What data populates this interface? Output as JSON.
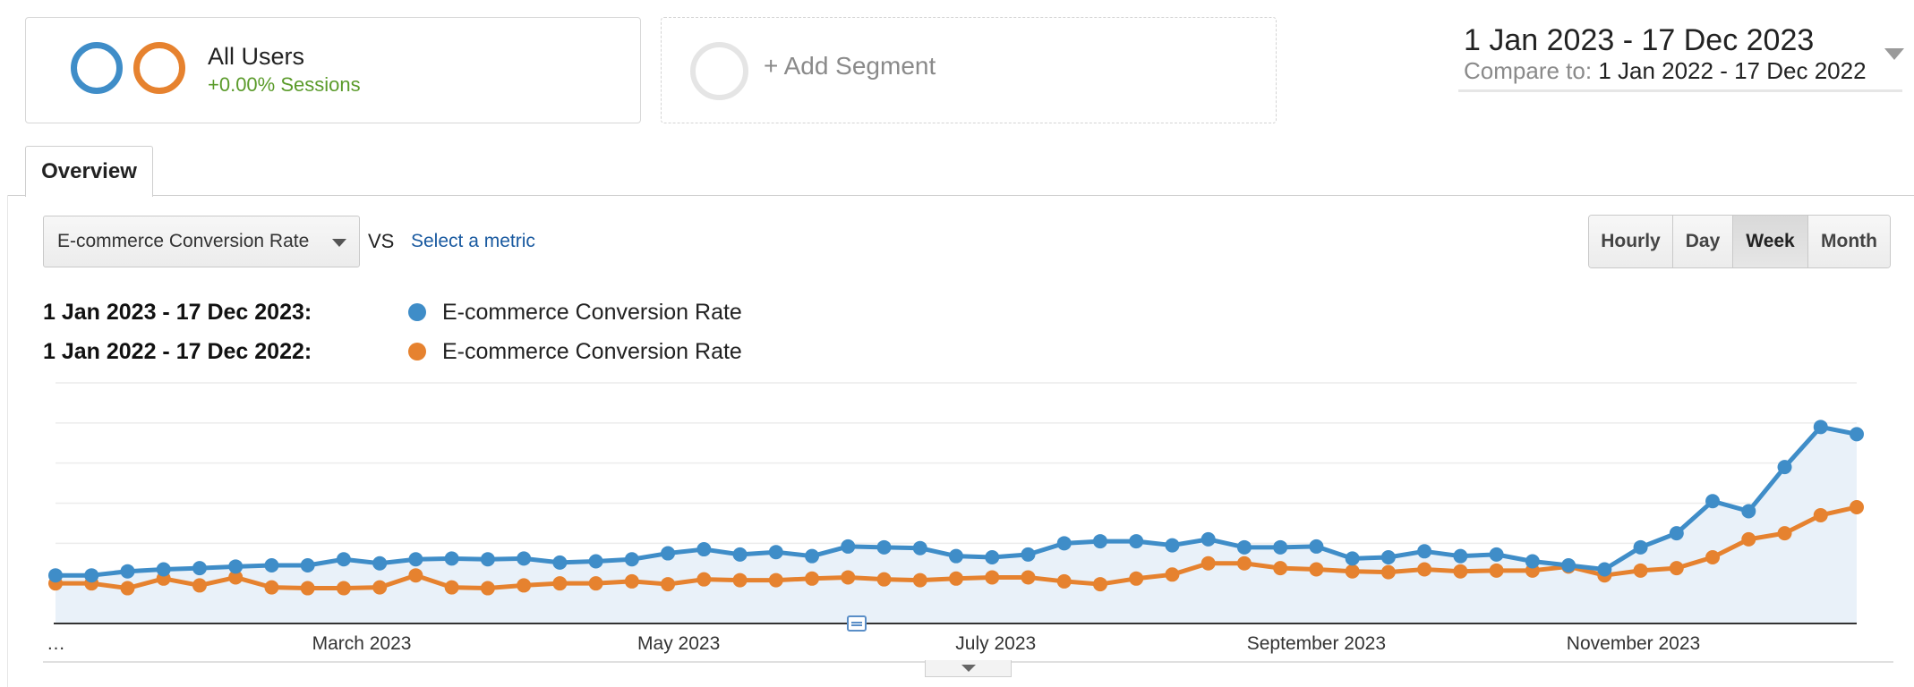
{
  "segments": {
    "all_users": {
      "title": "All Users",
      "subtitle": "+0.00% Sessions",
      "ring_colors": [
        "#3f8dc8",
        "#e6822f"
      ]
    },
    "add_segment": {
      "label": "+ Add Segment"
    }
  },
  "date_range": {
    "main": "1 Jan 2023 - 17 Dec 2023",
    "compare_label": "Compare to:",
    "compare_value": "1 Jan 2022 - 17 Dec 2022"
  },
  "tabs": [
    {
      "label": "Overview",
      "active": true
    }
  ],
  "metric": {
    "selected": "E-commerce Conversion Rate",
    "vs": "VS",
    "select_link": "Select a metric"
  },
  "granularity": {
    "buttons": [
      "Hourly",
      "Day",
      "Week",
      "Month"
    ],
    "active": "Week"
  },
  "legend": [
    {
      "range": "1 Jan 2023 - 17 Dec 2023:",
      "name": "E-commerce Conversion Rate",
      "color": "#3f8dc8"
    },
    {
      "range": "1 Jan 2022 - 17 Dec 2022:",
      "name": "E-commerce Conversion Rate",
      "color": "#e6822f"
    }
  ],
  "chart_data": {
    "type": "line",
    "x_tick_labels": [
      "…",
      "March 2023",
      "May 2023",
      "July 2023",
      "September 2023",
      "November 2023"
    ],
    "x_tick_index": [
      0,
      8.5,
      17.3,
      26.1,
      35,
      43.8
    ],
    "ylim": [
      0,
      6
    ],
    "grid": true,
    "area_fill_series": 0,
    "series": [
      {
        "name": "E-commerce Conversion Rate",
        "period": "1 Jan 2023 - 17 Dec 2023",
        "color": "#3f8dc8",
        "values": [
          1.2,
          1.2,
          1.3,
          1.35,
          1.38,
          1.42,
          1.45,
          1.45,
          1.6,
          1.5,
          1.6,
          1.62,
          1.6,
          1.62,
          1.52,
          1.55,
          1.6,
          1.75,
          1.85,
          1.72,
          1.78,
          1.68,
          1.92,
          1.9,
          1.88,
          1.68,
          1.65,
          1.72,
          2.0,
          2.05,
          2.05,
          1.95,
          2.1,
          1.9,
          1.9,
          1.92,
          1.62,
          1.65,
          1.8,
          1.68,
          1.72,
          1.55,
          1.45,
          1.35,
          1.9,
          2.25,
          3.05,
          2.8,
          3.9,
          4.9,
          4.72
        ]
      },
      {
        "name": "E-commerce Conversion Rate",
        "period": "1 Jan 2022 - 17 Dec 2022",
        "color": "#e6822f",
        "values": [
          1.0,
          1.0,
          0.88,
          1.12,
          0.95,
          1.15,
          0.9,
          0.88,
          0.88,
          0.9,
          1.2,
          0.9,
          0.88,
          0.95,
          1.0,
          1.0,
          1.05,
          0.98,
          1.1,
          1.08,
          1.08,
          1.12,
          1.15,
          1.1,
          1.08,
          1.12,
          1.15,
          1.15,
          1.05,
          0.98,
          1.12,
          1.22,
          1.5,
          1.5,
          1.38,
          1.35,
          1.3,
          1.28,
          1.35,
          1.3,
          1.32,
          1.32,
          1.42,
          1.2,
          1.32,
          1.38,
          1.65,
          2.1,
          2.25,
          2.7,
          2.9
        ]
      }
    ]
  }
}
